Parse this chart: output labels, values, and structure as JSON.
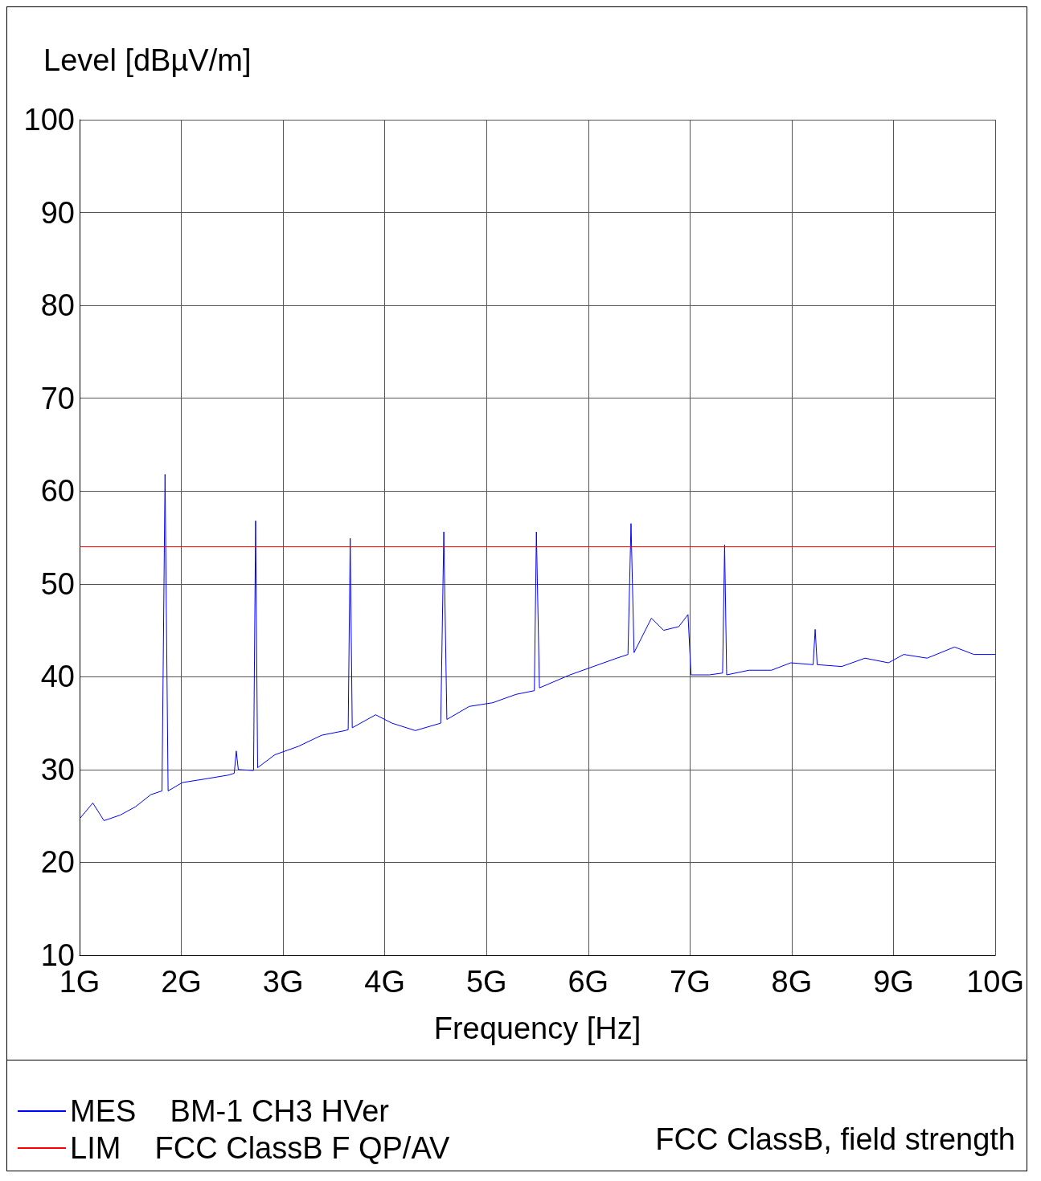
{
  "chart_data": {
    "type": "line",
    "ylabel": "Level [dBµV/m]",
    "xlabel": "Frequency [Hz]",
    "xlim": [
      1,
      10
    ],
    "xticks": [
      {
        "value": 1,
        "label": "1G"
      },
      {
        "value": 2,
        "label": "2G"
      },
      {
        "value": 3,
        "label": "3G"
      },
      {
        "value": 4,
        "label": "4G"
      },
      {
        "value": 5,
        "label": "5G"
      },
      {
        "value": 6,
        "label": "6G"
      },
      {
        "value": 7,
        "label": "7G"
      },
      {
        "value": 8,
        "label": "8G"
      },
      {
        "value": 9,
        "label": "9G"
      },
      {
        "value": 10,
        "label": "10G"
      }
    ],
    "ylim": [
      10,
      100
    ],
    "yticks": [
      10,
      20,
      30,
      40,
      50,
      60,
      70,
      80,
      90,
      100
    ],
    "grid": true,
    "legend": "bottom",
    "marker": "none",
    "line_style": "solid",
    "series": [
      {
        "name": "MES    BM-1 CH3 HVer",
        "color": "#0000ff",
        "x": [
          1.0,
          1.13,
          1.24,
          1.4,
          1.55,
          1.7,
          1.81,
          1.84,
          1.87,
          2.01,
          2.24,
          2.46,
          2.52,
          2.54,
          2.56,
          2.71,
          2.73,
          2.75,
          2.92,
          3.15,
          3.38,
          3.61,
          3.64,
          3.66,
          3.68,
          3.91,
          4.07,
          4.3,
          4.55,
          4.58,
          4.61,
          4.83,
          5.06,
          5.29,
          5.47,
          5.49,
          5.52,
          5.82,
          6.05,
          6.28,
          6.39,
          6.42,
          6.45,
          6.62,
          6.74,
          6.89,
          6.98,
          7.01,
          7.19,
          7.32,
          7.34,
          7.36,
          7.58,
          7.8,
          7.99,
          8.21,
          8.23,
          8.25,
          8.49,
          8.72,
          8.95,
          9.1,
          9.33,
          9.6,
          9.79,
          10.0
        ],
        "values": [
          24.7,
          26.4,
          24.5,
          25.1,
          26.0,
          27.3,
          27.7,
          61.8,
          27.7,
          28.6,
          29.0,
          29.4,
          29.6,
          32.0,
          30.0,
          29.9,
          56.8,
          30.2,
          31.6,
          32.5,
          33.7,
          34.2,
          34.3,
          54.9,
          34.5,
          35.9,
          35.0,
          34.2,
          35.0,
          55.6,
          35.4,
          36.8,
          37.2,
          38.1,
          38.5,
          55.6,
          38.8,
          40.2,
          41.1,
          42.0,
          42.4,
          56.5,
          42.6,
          46.3,
          45.0,
          45.4,
          46.7,
          40.2,
          40.2,
          40.4,
          54.2,
          40.2,
          40.7,
          40.7,
          41.5,
          41.3,
          45.1,
          41.3,
          41.1,
          42.0,
          41.5,
          42.4,
          42.0,
          43.2,
          42.4,
          42.4
        ]
      },
      {
        "name": "LIM    FCC ClassB F QP/AV",
        "color": "#ff0000",
        "x": [
          1,
          10
        ],
        "values": [
          54,
          54
        ]
      }
    ],
    "annotations": [
      "FCC ClassB, field strength"
    ]
  }
}
